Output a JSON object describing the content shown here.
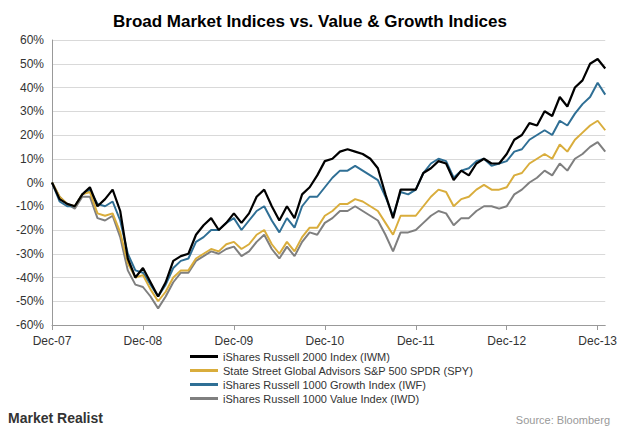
{
  "chart_data": {
    "type": "line",
    "title": "Broad Market Indices vs. Value & Growth Indices",
    "annotations": [
      "Market Realist",
      "Source: Bloomberg"
    ],
    "categories": [
      "Dec-07",
      null,
      null,
      null,
      null,
      null,
      null,
      null,
      null,
      null,
      null,
      null,
      "Dec-08",
      null,
      null,
      null,
      null,
      null,
      null,
      null,
      null,
      null,
      null,
      null,
      "Dec-09",
      null,
      null,
      null,
      null,
      null,
      null,
      null,
      null,
      null,
      null,
      null,
      "Dec-10",
      null,
      null,
      null,
      null,
      null,
      null,
      null,
      null,
      null,
      null,
      null,
      "Dec-11",
      null,
      null,
      null,
      null,
      null,
      null,
      null,
      null,
      null,
      null,
      null,
      "Dec-12",
      null,
      null,
      null,
      null,
      null,
      null,
      null,
      null,
      null,
      null,
      null,
      "Dec-13",
      null
    ],
    "series": [
      {
        "name": "iShares Russell 2000 Index (IWM)",
        "color": "#000000",
        "values": [
          0,
          -7,
          -9,
          -10,
          -5,
          -2,
          -10,
          -7,
          -3,
          -12,
          -32,
          -40,
          -36,
          -42,
          -48,
          -42,
          -33,
          -31,
          -30,
          -22,
          -18,
          -15,
          -20,
          -17,
          -13,
          -17,
          -13,
          -6,
          -3,
          -10,
          -16,
          -10,
          -15,
          -5,
          -2,
          3,
          9,
          10,
          13,
          14,
          13,
          12,
          10,
          6,
          -5,
          -15,
          -3,
          -3,
          -3,
          4,
          6,
          9,
          8,
          1,
          5,
          3,
          8,
          10,
          8,
          8,
          12,
          18,
          20,
          25,
          24,
          30,
          28,
          36,
          32,
          40,
          43,
          50,
          52,
          48
        ]
      },
      {
        "name": "State Street Global Advisors S&P 500 SPDR (SPY)",
        "color": "#D9AD3C",
        "values": [
          0,
          -6,
          -9,
          -10,
          -5,
          -4,
          -13,
          -14,
          -13,
          -21,
          -34,
          -40,
          -39,
          -45,
          -50,
          -46,
          -40,
          -37,
          -37,
          -32,
          -30,
          -28,
          -29,
          -26,
          -25,
          -28,
          -26,
          -22,
          -20,
          -26,
          -30,
          -25,
          -29,
          -23,
          -19,
          -19,
          -14,
          -12,
          -9,
          -9,
          -7,
          -8,
          -10,
          -12,
          -17,
          -22,
          -14,
          -14,
          -14,
          -10,
          -6,
          -3,
          -4,
          -10,
          -7,
          -6,
          -3,
          -1,
          -3,
          -3,
          -2,
          3,
          4,
          8,
          10,
          12,
          10,
          16,
          13,
          18,
          21,
          24,
          26,
          22
        ]
      },
      {
        "name": "iShares Russell 1000 Growth Index (IWF)",
        "color": "#2F6F95",
        "values": [
          0,
          -8,
          -10,
          -10,
          -5,
          -3,
          -9,
          -10,
          -8,
          -16,
          -30,
          -37,
          -38,
          -43,
          -48,
          -43,
          -36,
          -33,
          -32,
          -25,
          -23,
          -20,
          -20,
          -17,
          -15,
          -20,
          -16,
          -12,
          -10,
          -16,
          -21,
          -15,
          -19,
          -10,
          -6,
          -6,
          -2,
          2,
          5,
          5,
          7,
          5,
          3,
          1,
          -6,
          -14,
          -4,
          -5,
          -3,
          4,
          8,
          10,
          9,
          2,
          5,
          6,
          9,
          10,
          7,
          8,
          9,
          13,
          14,
          18,
          20,
          22,
          20,
          26,
          24,
          29,
          33,
          36,
          42,
          37
        ]
      },
      {
        "name": "iShares Russell 1000 Value Index (IWD)",
        "color": "#7F7F7F",
        "values": [
          0,
          -6,
          -9,
          -11,
          -6,
          -6,
          -15,
          -16,
          -14,
          -23,
          -37,
          -43,
          -44,
          -48,
          -53,
          -48,
          -42,
          -38,
          -38,
          -33,
          -31,
          -29,
          -30,
          -28,
          -27,
          -31,
          -29,
          -25,
          -22,
          -28,
          -32,
          -27,
          -31,
          -25,
          -21,
          -22,
          -17,
          -15,
          -12,
          -12,
          -10,
          -12,
          -14,
          -16,
          -22,
          -29,
          -21,
          -21,
          -20,
          -17,
          -14,
          -12,
          -13,
          -18,
          -15,
          -15,
          -12,
          -10,
          -10,
          -11,
          -10,
          -5,
          -3,
          0,
          2,
          5,
          3,
          8,
          5,
          10,
          12,
          15,
          17,
          13
        ]
      }
    ],
    "ylim": [
      -60,
      60
    ],
    "yticks": [
      {
        "value": -60,
        "label": "-60%"
      },
      {
        "value": -50,
        "label": "-50%"
      },
      {
        "value": -40,
        "label": "-40%"
      },
      {
        "value": -30,
        "label": "-30%"
      },
      {
        "value": -20,
        "label": "-20%"
      },
      {
        "value": -10,
        "label": "-10%"
      },
      {
        "value": 0,
        "label": "0%"
      },
      {
        "value": 10,
        "label": "10%"
      },
      {
        "value": 20,
        "label": "20%"
      },
      {
        "value": 30,
        "label": "30%"
      },
      {
        "value": 40,
        "label": "40%"
      },
      {
        "value": 50,
        "label": "50%"
      },
      {
        "value": 60,
        "label": "60%"
      }
    ],
    "grid": true,
    "legend": "bottom",
    "marker": "none",
    "line_style": "solid"
  }
}
